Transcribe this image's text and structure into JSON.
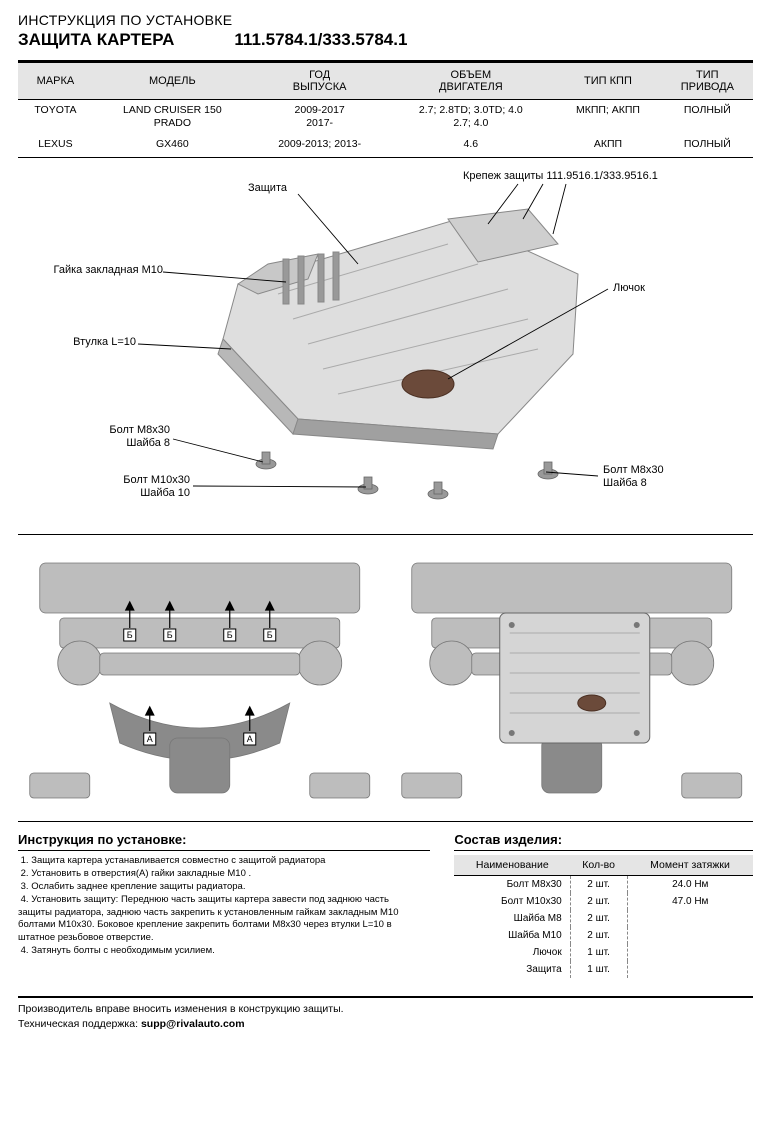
{
  "header": {
    "line1": "ИНСТРУКЦИЯ ПО УСТАНОВКЕ",
    "title": "ЗАЩИТА КАРТЕРА",
    "part_no": "111.5784.1/333.5784.1"
  },
  "specs": {
    "columns": [
      "МАРКА",
      "МОДЕЛЬ",
      "ГОД\nВЫПУСКА",
      "ОБЪЕМ\nДВИГАТЕЛЯ",
      "ТИП КПП",
      "ТИП\nПРИВОДА"
    ],
    "rows": [
      [
        "TOYOTA",
        "LAND CRUISER 150\nPRADO",
        "2009-2017\n2017-",
        "2.7; 2.8TD; 3.0TD; 4.0\n2.7; 4.0",
        "МКПП; АКПП",
        "ПОЛНЫЙ"
      ],
      [
        "LEXUS",
        "GX460",
        "2009-2013; 2013-",
        "4.6",
        "АКПП",
        "ПОЛНЫЙ"
      ]
    ]
  },
  "diagram1_labels": {
    "zashita": "Защита",
    "krepezh": "Крепеж защиты 111.9516.1/333.9516.1",
    "gayka": "Гайка закладная М10",
    "vtulka": "Втулка L=10",
    "bolt_m8_1": "Болт М8х30\nШайба 8",
    "bolt_m10": "Болт М10х30\nШайба 10",
    "bolt_m8_2": "Болт М8х30\nШайба 8",
    "lyuchok": "Лючок"
  },
  "instructions": {
    "title": "Инструкция по установке:",
    "body": " 1. Защита картера устанавливается совместно с защитой радиатора\n 2. Установить в отверстия(А) гайки закладные М10 .\n 3. Ослабить заднее крепление защиты радиатора.\n 4. Установить защиту: Переднюю часть защиты картера завести под заднюю часть\nзащиты радиатора, заднюю часть закрепить к установленным гайкам закладным М10\nболтами М10х30. Боковое крепление закрепить болтами М8х30 через втулки L=10 в\nштатное резьбовое отверстие.\n 4. Затянуть болты с необходимым усилием."
  },
  "parts": {
    "title": "Состав изделия:",
    "columns": [
      "Наименование",
      "Кол-во",
      "Момент затяжки"
    ],
    "rows": [
      [
        "Болт М8х30",
        "2 шт.",
        "24.0 Нм"
      ],
      [
        "Болт М10х30",
        "2 шт.",
        "47.0 Нм"
      ],
      [
        "Шайба М8",
        "2 шт.",
        ""
      ],
      [
        "Шайба М10",
        "2 шт.",
        ""
      ],
      [
        "Лючок",
        "1 шт.",
        ""
      ],
      [
        "Защита",
        "1 шт.",
        ""
      ]
    ]
  },
  "footer": {
    "line1": "Производитель вправе вносить изменения в конструкцию защиты.",
    "line2_pre": "Техническая поддержка: ",
    "email": "supp@rivalauto.com"
  },
  "colors": {
    "plate_fill": "#dedede",
    "plate_dark": "#b8b8b8",
    "plate_edge": "#888888",
    "bolt": "#999999",
    "under_body": "#bdbdbd",
    "under_dark": "#8a8a8a",
    "under_plate": "#d5d5d5"
  }
}
